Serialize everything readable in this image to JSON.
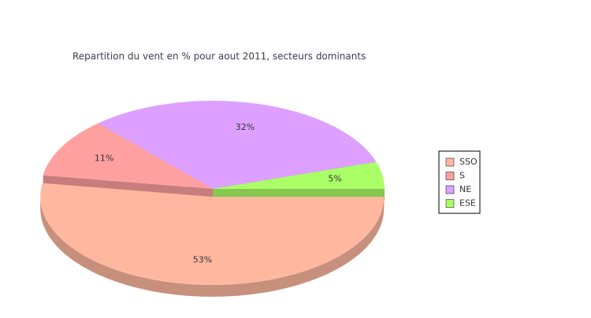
{
  "chart_data": {
    "type": "pie3d",
    "title": "Repartition du vent en % pour aout 2011, secteurs dominants",
    "categories": [
      "SSO",
      "S",
      "NE",
      "ESE"
    ],
    "values": [
      53,
      11,
      32,
      5
    ],
    "value_labels": [
      "53%",
      "11%",
      "32%",
      "5%"
    ],
    "colors": [
      "#ffb8a0",
      "#ffa0a0",
      "#dda0ff",
      "#aaff66"
    ],
    "legend": "right"
  }
}
